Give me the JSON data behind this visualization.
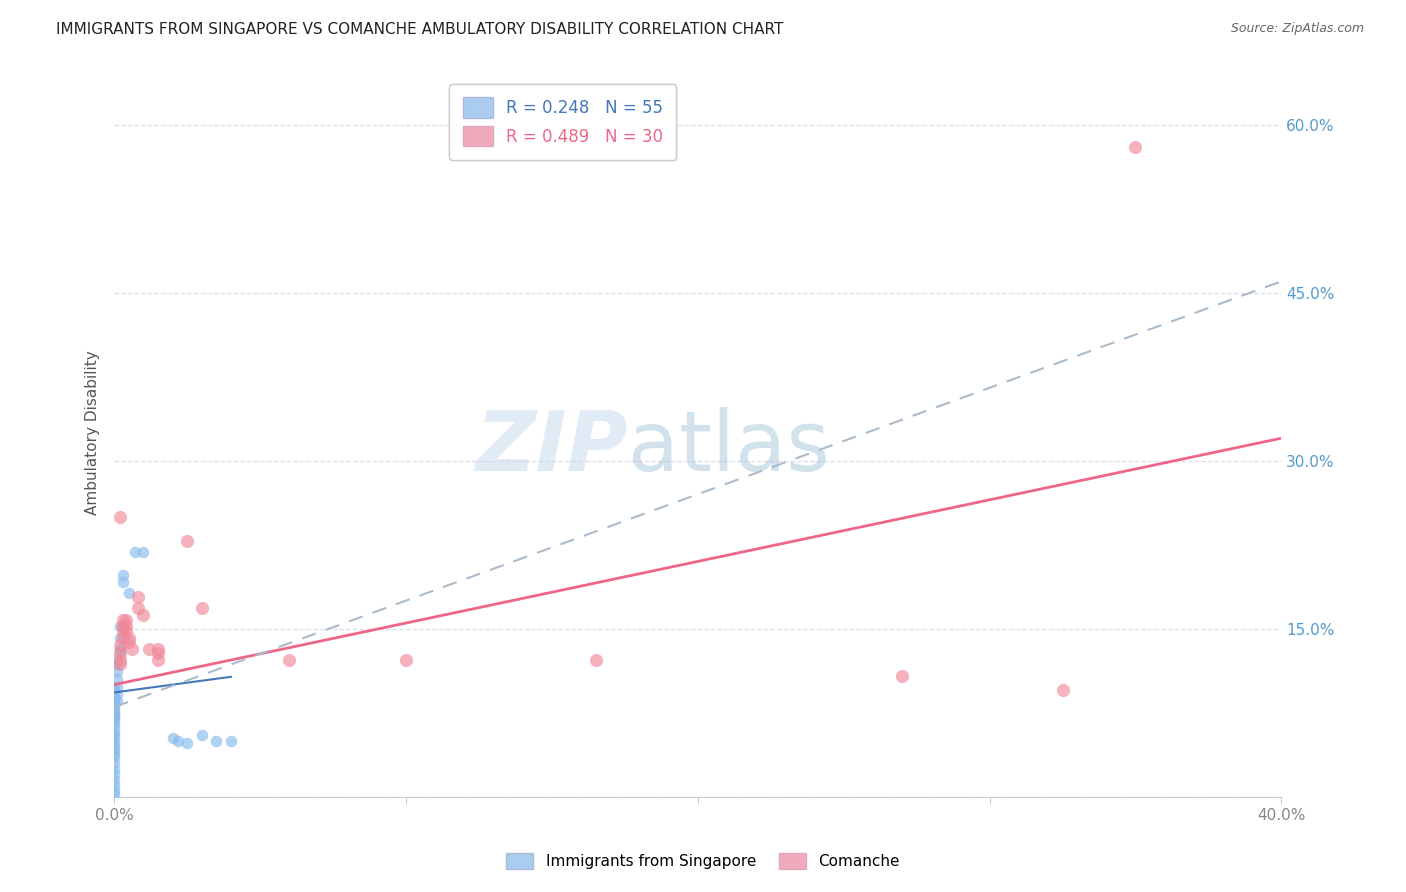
{
  "title": "IMMIGRANTS FROM SINGAPORE VS COMANCHE AMBULATORY DISABILITY CORRELATION CHART",
  "source": "Source: ZipAtlas.com",
  "ylabel": "Ambulatory Disability",
  "legend_label1": "Immigrants from Singapore",
  "legend_label2": "Comanche",
  "legend_r1": "R = 0.248   N = 55",
  "legend_r2": "R = 0.489   N = 30",
  "singapore_color": "#88bbee",
  "comanche_color": "#f08898",
  "singapore_marker_size": 70,
  "comanche_marker_size": 90,
  "sg_legend_color": "#aaccee",
  "com_legend_color": "#f0aabb",
  "sg_trend_color": "#4477bb",
  "com_trend_color": "#ee6688",
  "dash_color": "#aabbcc",
  "xlim": [
    0.0,
    0.4
  ],
  "ylim": [
    0.0,
    0.65
  ],
  "x_tick_positions": [
    0.0,
    0.1,
    0.2,
    0.3,
    0.4
  ],
  "y_tick_positions": [
    0.0,
    0.15,
    0.3,
    0.45,
    0.6
  ],
  "y_tick_labels": [
    "",
    "15.0%",
    "30.0%",
    "45.0%",
    "60.0%"
  ],
  "background_color": "#ffffff",
  "grid_color": "#ddddee",
  "singapore_points": [
    [
      0.0,
      0.098
    ],
    [
      0.0,
      0.095
    ],
    [
      0.0,
      0.093
    ],
    [
      0.0,
      0.092
    ],
    [
      0.0,
      0.09
    ],
    [
      0.0,
      0.088
    ],
    [
      0.0,
      0.087
    ],
    [
      0.0,
      0.085
    ],
    [
      0.0,
      0.083
    ],
    [
      0.0,
      0.08
    ],
    [
      0.0,
      0.078
    ],
    [
      0.0,
      0.076
    ],
    [
      0.0,
      0.074
    ],
    [
      0.0,
      0.072
    ],
    [
      0.0,
      0.07
    ],
    [
      0.0,
      0.068
    ],
    [
      0.0,
      0.065
    ],
    [
      0.0,
      0.062
    ],
    [
      0.0,
      0.058
    ],
    [
      0.0,
      0.055
    ],
    [
      0.0,
      0.052
    ],
    [
      0.0,
      0.048
    ],
    [
      0.0,
      0.045
    ],
    [
      0.0,
      0.042
    ],
    [
      0.0,
      0.038
    ],
    [
      0.0,
      0.035
    ],
    [
      0.0,
      0.03
    ],
    [
      0.0,
      0.025
    ],
    [
      0.0,
      0.02
    ],
    [
      0.0,
      0.015
    ],
    [
      0.0,
      0.01
    ],
    [
      0.0,
      0.005
    ],
    [
      0.0,
      0.002
    ],
    [
      0.001,
      0.122
    ],
    [
      0.001,
      0.118
    ],
    [
      0.001,
      0.112
    ],
    [
      0.001,
      0.105
    ],
    [
      0.001,
      0.098
    ],
    [
      0.001,
      0.092
    ],
    [
      0.001,
      0.085
    ],
    [
      0.002,
      0.152
    ],
    [
      0.002,
      0.142
    ],
    [
      0.002,
      0.132
    ],
    [
      0.003,
      0.198
    ],
    [
      0.003,
      0.192
    ],
    [
      0.005,
      0.182
    ],
    [
      0.007,
      0.218
    ],
    [
      0.01,
      0.218
    ],
    [
      0.02,
      0.052
    ],
    [
      0.022,
      0.05
    ],
    [
      0.025,
      0.048
    ],
    [
      0.03,
      0.055
    ],
    [
      0.035,
      0.05
    ],
    [
      0.04,
      0.05
    ],
    [
      0.002,
      0.13
    ]
  ],
  "comanche_points": [
    [
      0.002,
      0.25
    ],
    [
      0.002,
      0.135
    ],
    [
      0.002,
      0.128
    ],
    [
      0.002,
      0.122
    ],
    [
      0.002,
      0.118
    ],
    [
      0.003,
      0.158
    ],
    [
      0.003,
      0.152
    ],
    [
      0.003,
      0.148
    ],
    [
      0.003,
      0.142
    ],
    [
      0.004,
      0.158
    ],
    [
      0.004,
      0.152
    ],
    [
      0.004,
      0.148
    ],
    [
      0.005,
      0.142
    ],
    [
      0.005,
      0.138
    ],
    [
      0.006,
      0.132
    ],
    [
      0.008,
      0.178
    ],
    [
      0.008,
      0.168
    ],
    [
      0.01,
      0.162
    ],
    [
      0.012,
      0.132
    ],
    [
      0.015,
      0.132
    ],
    [
      0.015,
      0.128
    ],
    [
      0.015,
      0.122
    ],
    [
      0.025,
      0.228
    ],
    [
      0.03,
      0.168
    ],
    [
      0.06,
      0.122
    ],
    [
      0.1,
      0.122
    ],
    [
      0.165,
      0.122
    ],
    [
      0.27,
      0.108
    ],
    [
      0.325,
      0.095
    ],
    [
      0.35,
      0.58
    ]
  ],
  "sg_trend_x": [
    0.0,
    0.04
  ],
  "sg_trend_y": [
    0.093,
    0.107
  ],
  "com_trend_x": [
    0.0,
    0.4
  ],
  "com_trend_y": [
    0.1,
    0.32
  ],
  "dash_trend_x": [
    0.0,
    0.4
  ],
  "dash_trend_y": [
    0.08,
    0.46
  ]
}
